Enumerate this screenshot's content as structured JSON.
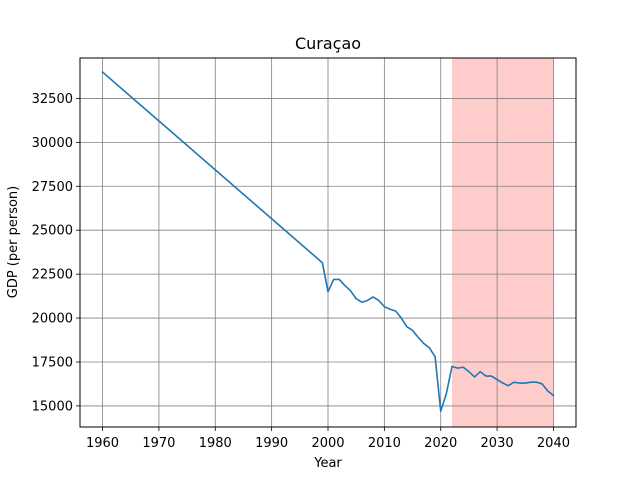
{
  "chart_data": {
    "type": "line",
    "title": "Curaçao",
    "xlabel": "Year",
    "ylabel": "GDP (per person)",
    "xlim": [
      1956,
      2044
    ],
    "ylim": [
      13800,
      34800
    ],
    "grid": true,
    "xticks": [
      1960,
      1970,
      1980,
      1990,
      2000,
      2010,
      2020,
      2030,
      2040
    ],
    "xtick_labels": [
      "1960",
      "1970",
      "1980",
      "1990",
      "2000",
      "2010",
      "2020",
      "2030",
      "2040"
    ],
    "yticks": [
      15000,
      17500,
      20000,
      22500,
      25000,
      27500,
      30000,
      32500
    ],
    "ytick_labels": [
      "15000",
      "17500",
      "20000",
      "22500",
      "25000",
      "27500",
      "30000",
      "32500"
    ],
    "forecast_region": {
      "x_start": 2022,
      "x_end": 2040,
      "color": "#ffcccc"
    },
    "series": [
      {
        "color": "#1f77b4",
        "x": [
          1960,
          1999,
          2000,
          2001,
          2002,
          2003,
          2004,
          2005,
          2006,
          2007,
          2008,
          2009,
          2010,
          2011,
          2012,
          2013,
          2014,
          2015,
          2016,
          2017,
          2018,
          2019,
          2020,
          2021,
          2022,
          2023,
          2024,
          2025,
          2026,
          2027,
          2028,
          2029,
          2030,
          2031,
          2032,
          2033,
          2034,
          2035,
          2036,
          2037,
          2038,
          2039,
          2040
        ],
        "y": [
          34000,
          23150,
          21500,
          22200,
          22200,
          21850,
          21550,
          21100,
          20900,
          21000,
          21200,
          21000,
          20650,
          20500,
          20400,
          20000,
          19500,
          19300,
          18900,
          18550,
          18300,
          17800,
          14700,
          15700,
          17250,
          17150,
          17200,
          16950,
          16650,
          16950,
          16700,
          16700,
          16500,
          16300,
          16150,
          16350,
          16300,
          16300,
          16350,
          16350,
          16250,
          15850,
          15600
        ]
      }
    ]
  }
}
